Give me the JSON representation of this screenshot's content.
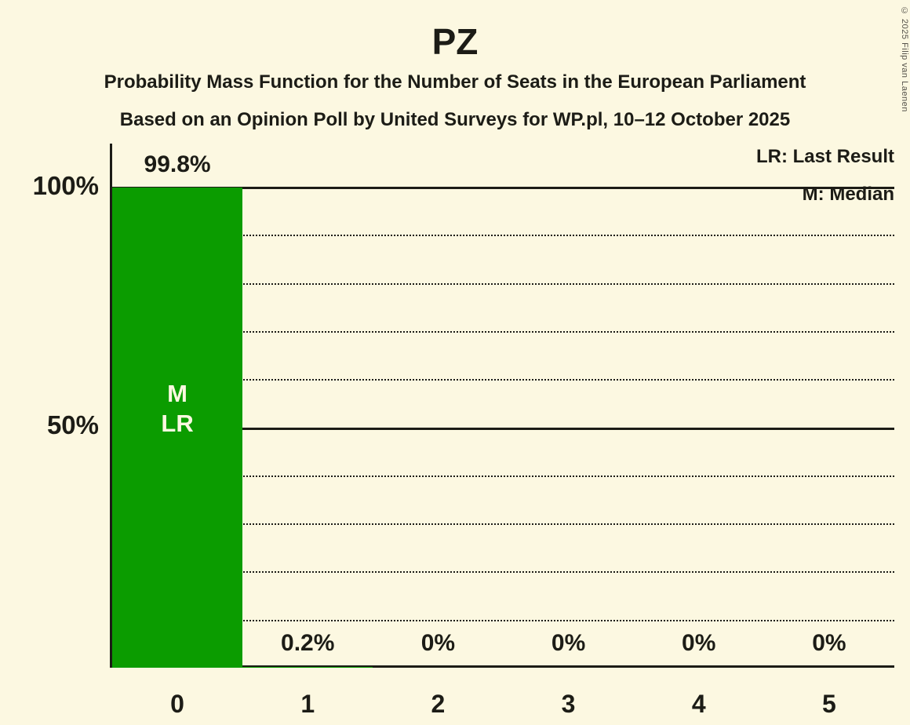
{
  "header": {
    "title": "PZ",
    "subtitle1": "Probability Mass Function for the Number of Seats in the European Parliament",
    "subtitle2": "Based on an Opinion Poll by United Surveys for WP.pl, 10–12 October 2025"
  },
  "copyright": "© 2025 Filip van Laenen",
  "legend": {
    "lr": "LR: Last Result",
    "m": "M: Median"
  },
  "chart_data": {
    "type": "bar",
    "title": "PZ",
    "xlabel": "",
    "ylabel": "",
    "categories": [
      "0",
      "1",
      "2",
      "3",
      "4",
      "5"
    ],
    "values": [
      99.8,
      0.2,
      0,
      0,
      0,
      0
    ],
    "value_labels": [
      "99.8%",
      "0.2%",
      "0%",
      "0%",
      "0%",
      "0%"
    ],
    "bar_annotations": [
      "M\nLR",
      "",
      "",
      "",
      "",
      ""
    ],
    "yticks": [
      {
        "label": "100%",
        "value": 100
      },
      {
        "label": "50%",
        "value": 50
      }
    ],
    "ymax": 100,
    "grid": {
      "interval": 10,
      "solid_at": [
        50,
        100
      ]
    },
    "legend_position": "top-right",
    "bar_color": "#0B9C00",
    "bar_label_color": "#FCF8E1",
    "background": "#FCF8E1",
    "text_color": "#1C1C16"
  }
}
